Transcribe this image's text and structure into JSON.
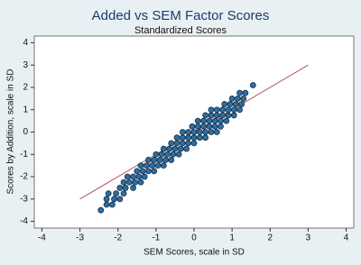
{
  "chart_data": {
    "type": "scatter",
    "title": "Added vs SEM Factor Scores",
    "subtitle": "Standardized Scores",
    "x_label": "SEM Scores, scale in SD",
    "y_label": "Scores by Addition, scale in SD",
    "xlim": [
      -4.2,
      4.2
    ],
    "ylim": [
      -4.3,
      4.3
    ],
    "xticks": [
      -4,
      -3,
      -2,
      -1,
      0,
      1,
      2,
      3,
      4
    ],
    "yticks": [
      -4,
      -3,
      -2,
      -1,
      0,
      1,
      2,
      3,
      4
    ],
    "reference_line": {
      "x": [
        -3,
        3
      ],
      "values": [
        -3,
        3
      ],
      "color": "#b5545c"
    },
    "series": [
      {
        "color": "#2f6d9c",
        "x": [
          -2.45,
          -2.3,
          -2.15,
          -2.3,
          -2.1,
          -1.95,
          -2.25,
          -2.05,
          -1.85,
          -1.95,
          -1.8,
          -1.6,
          -1.85,
          -1.7,
          -1.55,
          -1.4,
          -1.75,
          -1.6,
          -1.45,
          -1.3,
          -1.5,
          -1.35,
          -1.2,
          -1.05,
          -1.4,
          -1.25,
          -1.1,
          -0.95,
          -0.8,
          -1.2,
          -1.05,
          -0.9,
          -0.75,
          -0.6,
          -1.0,
          -0.85,
          -0.7,
          -0.55,
          -0.4,
          -0.8,
          -0.65,
          -0.5,
          -0.35,
          -0.2,
          -0.6,
          -0.45,
          -0.3,
          -0.15,
          0,
          -0.45,
          -0.3,
          -0.15,
          0,
          0.15,
          0.3,
          -0.3,
          -0.15,
          0,
          0.15,
          0.3,
          0.45,
          0.6,
          -0.05,
          0.1,
          0.25,
          0.4,
          0.55,
          0.7,
          0.1,
          0.25,
          0.4,
          0.55,
          0.7,
          0.85,
          0.3,
          0.45,
          0.6,
          0.75,
          0.9,
          1.05,
          0.45,
          0.6,
          0.75,
          0.9,
          1.05,
          1.2,
          0.8,
          0.95,
          1.1,
          1.25,
          1.0,
          1.15,
          1.3,
          1.2,
          1.35,
          1.55
        ],
        "values": [
          -3.5,
          -3.25,
          -3.25,
          -3,
          -3,
          -3,
          -2.75,
          -2.75,
          -2.75,
          -2.5,
          -2.5,
          -2.5,
          -2.25,
          -2.25,
          -2.25,
          -2.25,
          -2,
          -2,
          -2,
          -2,
          -1.75,
          -1.75,
          -1.75,
          -1.75,
          -1.5,
          -1.5,
          -1.5,
          -1.5,
          -1.5,
          -1.25,
          -1.25,
          -1.25,
          -1.25,
          -1.25,
          -1,
          -1,
          -1,
          -1,
          -1,
          -0.75,
          -0.75,
          -0.75,
          -0.75,
          -0.75,
          -0.5,
          -0.5,
          -0.5,
          -0.5,
          -0.5,
          -0.25,
          -0.25,
          -0.25,
          -0.25,
          -0.25,
          -0.25,
          0,
          0,
          0,
          0,
          0,
          0,
          0,
          0.25,
          0.25,
          0.25,
          0.25,
          0.25,
          0.25,
          0.5,
          0.5,
          0.5,
          0.5,
          0.5,
          0.5,
          0.75,
          0.75,
          0.75,
          0.75,
          0.75,
          0.75,
          1,
          1,
          1,
          1,
          1,
          1,
          1.25,
          1.25,
          1.25,
          1.25,
          1.5,
          1.5,
          1.5,
          1.75,
          1.75,
          2.1
        ]
      }
    ]
  }
}
